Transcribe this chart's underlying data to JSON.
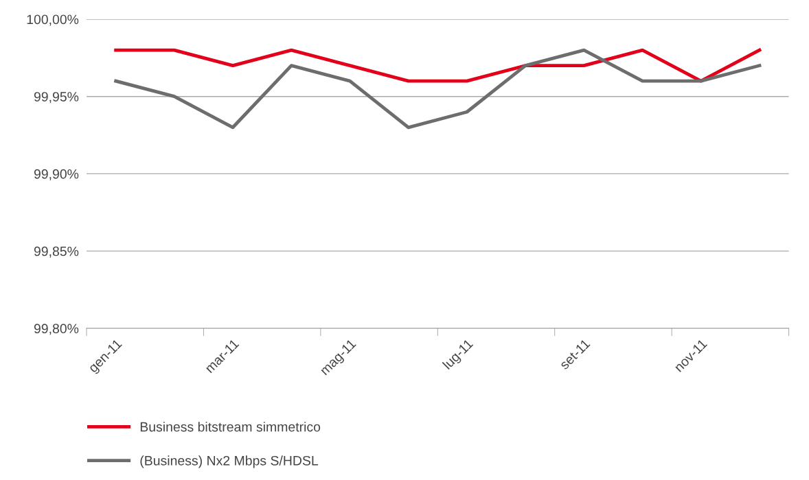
{
  "chart_data": {
    "type": "line",
    "categories": [
      "gen-11",
      null,
      "mar-11",
      null,
      "mag-11",
      null,
      "lug-11",
      null,
      "set-11",
      null,
      "nov-11",
      null
    ],
    "series": [
      {
        "name": "Business bitstream simmetrico",
        "color": "#e3001b",
        "values": [
          99.98,
          99.98,
          99.97,
          99.98,
          99.97,
          99.96,
          99.96,
          99.97,
          99.97,
          99.98,
          99.96,
          99.98
        ]
      },
      {
        "name": "(Business) Nx2 Mbps S/HDSL",
        "color": "#6d6d6d",
        "values": [
          99.96,
          99.95,
          99.93,
          99.97,
          99.96,
          99.93,
          99.94,
          99.97,
          99.98,
          99.96,
          99.96,
          99.97
        ]
      }
    ],
    "ylim": [
      99.8,
      100.0
    ],
    "yticks": [
      {
        "value": 99.8,
        "label": "99,80%"
      },
      {
        "value": 99.85,
        "label": "99,85%"
      },
      {
        "value": 99.9,
        "label": "99,90%"
      },
      {
        "value": 99.95,
        "label": "99,95%"
      },
      {
        "value": 100.0,
        "label": "100,00%"
      }
    ],
    "grid": "y",
    "legend": "bottom",
    "marker": "none",
    "line_style": "solid"
  }
}
